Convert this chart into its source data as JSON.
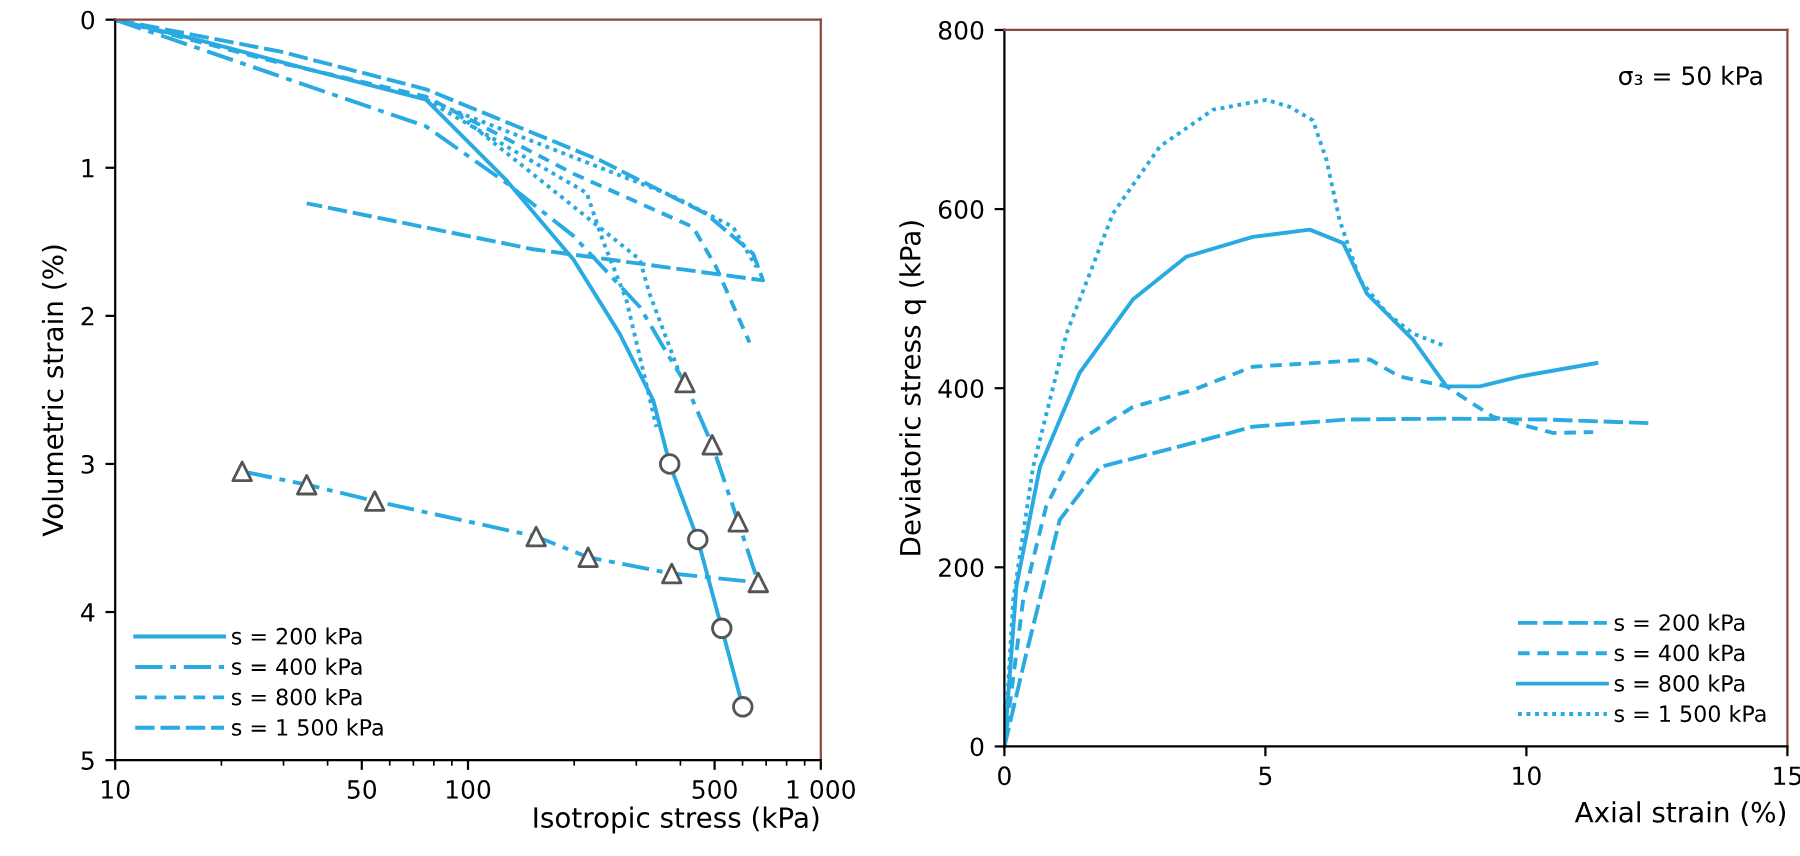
{
  "chart_data": [
    {
      "type": "line",
      "xlabel": "Isotropic stress (kPa)",
      "ylabel": "Volumetric strain (%)",
      "log": "x",
      "xlim": [
        10,
        1000
      ],
      "xticks": [
        10,
        50,
        100,
        500,
        {
          "value": 1000,
          "label": "1 000"
        }
      ],
      "ylim": [
        5,
        0
      ],
      "yticks": [
        0,
        1,
        2,
        3,
        4,
        5
      ],
      "grid": false,
      "legend": "bottom left",
      "series": [
        {
          "name": "s = 200 kPa",
          "color": "#29abe2",
          "line_style": "solid",
          "x": [
            10,
            17.4,
            33.5,
            76,
            128,
            199,
            269,
            335,
            373,
            448,
            524,
            601
          ],
          "values": [
            0,
            0.14,
            0.32,
            0.54,
            1.08,
            1.62,
            2.12,
            2.57,
            3.0,
            3.51,
            4.11,
            4.64
          ]
        },
        {
          "name": "s = 400 kPa",
          "color": "#29abe2",
          "line_style": "dashdot",
          "x": [
            10,
            33.5,
            76,
            128,
            199,
            307,
            381,
            412,
            492,
            583,
            665,
            378,
            219,
            156,
            54.4,
            34.9,
            22.9
          ],
          "values": [
            0,
            0.43,
            0.72,
            1.1,
            1.46,
            1.94,
            2.32,
            2.45,
            2.87,
            3.39,
            3.8,
            3.74,
            3.63,
            3.49,
            3.25,
            3.14,
            3.05
          ]
        },
        {
          "name": "s = 800 kPa",
          "color": "#29abe2",
          "line_style": "dashed",
          "x": [
            10,
            26.9,
            76,
            199,
            434,
            505,
            628
          ],
          "values": [
            0,
            0.27,
            0.52,
            1.04,
            1.4,
            1.67,
            2.18
          ]
        },
        {
          "name": "s = 1 500 kPa",
          "color": "#29abe2",
          "line_style": "longdash",
          "x": [
            10,
            30,
            76,
            237,
            473,
            643,
            686,
            153,
            34.9
          ],
          "values": [
            0,
            0.22,
            0.47,
            0.95,
            1.31,
            1.58,
            1.76,
            1.55,
            1.24
          ]
        },
        {
          "color": "#29abe2",
          "line_style": "dotted",
          "x": [
            76,
            217,
            241,
            281,
            342
          ],
          "values": [
            0.54,
            1.17,
            1.49,
            1.89,
            2.75
          ]
        },
        {
          "color": "#29abe2",
          "line_style": "dotted",
          "x": [
            95,
            307,
            327,
            398
          ],
          "values": [
            0.65,
            1.62,
            1.85,
            2.39
          ]
        },
        {
          "color": "#29abe2",
          "line_style": "dotted",
          "x": [
            76,
            380,
            564,
            656
          ],
          "values": [
            0.54,
            1.19,
            1.4,
            1.67
          ]
        },
        {
          "type": "scatter",
          "color": "#555555",
          "marker": "circle",
          "x": [
            373,
            448,
            524,
            601
          ],
          "values": [
            3.0,
            3.51,
            4.11,
            4.64
          ]
        },
        {
          "type": "scatter",
          "color": "#555555",
          "marker": "triangle",
          "x": [
            412,
            492,
            583,
            665,
            378,
            219,
            156,
            54.4,
            34.9,
            22.9
          ],
          "values": [
            2.45,
            2.87,
            3.39,
            3.8,
            3.74,
            3.63,
            3.49,
            3.25,
            3.14,
            3.05
          ]
        }
      ]
    },
    {
      "type": "line",
      "xlabel": "Axial strain (%)",
      "ylabel": "Deviatoric stress q (kPa)",
      "xlim": [
        0,
        15
      ],
      "xticks": [
        0,
        5,
        10,
        15
      ],
      "ylim": [
        0,
        800
      ],
      "yticks": [
        0,
        200,
        400,
        600,
        800
      ],
      "grid": false,
      "legend": "bottom right",
      "annotations": [
        "σ₃ = 50 kPa"
      ],
      "series": [
        {
          "name": "s = 200 kPa",
          "color": "#29abe2",
          "line_style": "longdash",
          "x": [
            0,
            0.42,
            1.06,
            1.83,
            3.36,
            4.76,
            6.55,
            8.47,
            10.38,
            12.36
          ],
          "values": [
            0,
            104,
            253,
            312,
            335,
            357,
            365,
            366,
            365,
            361
          ]
        },
        {
          "name": "s = 400 kPa",
          "color": "#29abe2",
          "line_style": "dashed",
          "x": [
            0,
            0.36,
            0.8,
            1.44,
            2.46,
            3.61,
            4.76,
            5.91,
            7.0,
            7.57,
            8.47,
            9.36,
            10.51,
            11.28
          ],
          "values": [
            0,
            164,
            268,
            342,
            379,
            398,
            424,
            428,
            432,
            413,
            402,
            368,
            350,
            351
          ]
        },
        {
          "name": "s = 800 kPa",
          "color": "#29abe2",
          "line_style": "solid",
          "x": [
            0,
            0.23,
            0.68,
            1.44,
            2.46,
            3.49,
            4.76,
            5.85,
            6.49,
            6.94,
            7.83,
            8.47,
            9.11,
            9.87,
            11.34
          ],
          "values": [
            0,
            179,
            312,
            417,
            499,
            547,
            569,
            577,
            562,
            506,
            454,
            402,
            402,
            413,
            428
          ]
        },
        {
          "name": "s = 1 500 kPa",
          "color": "#29abe2",
          "line_style": "dotted",
          "x": [
            0,
            0.17,
            0.55,
            1.19,
            2.08,
            2.98,
            4.0,
            5.02,
            5.47,
            5.91,
            6.17,
            6.42,
            6.81,
            7.32,
            7.83,
            8.4
          ],
          "values": [
            0,
            164,
            312,
            461,
            595,
            670,
            711,
            722,
            714,
            699,
            655,
            588,
            521,
            484,
            461,
            448
          ]
        }
      ]
    }
  ]
}
